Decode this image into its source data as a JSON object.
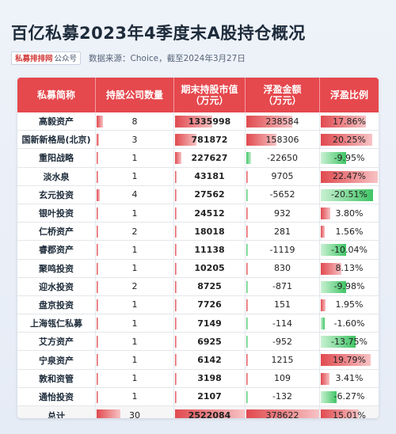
{
  "title": "百亿私募2023年4季度末A股持仓概况",
  "badge": {
    "part1": "私募排排网",
    "part2": "公众号"
  },
  "source": "数据来源：Choice，截至2024年3月27日",
  "headers": [
    "私募简称",
    "持股公司数量",
    "期末持股市值\n（万元）",
    "浮盈金额\n（万元）",
    "浮盈比例"
  ],
  "colors": {
    "header": "#e5484d",
    "positive": "#e04a4f",
    "negative": "#3fc565"
  },
  "rows": [
    {
      "name": "高毅资产",
      "count": "8",
      "value": "1335998",
      "profit": "238584",
      "ratio": "17.86%"
    },
    {
      "name": "国新新格局(北京)",
      "count": "3",
      "value": "781872",
      "profit": "158306",
      "ratio": "20.25%"
    },
    {
      "name": "重阳战略",
      "count": "1",
      "value": "227627",
      "profit": "-22650",
      "ratio": "-9.95%"
    },
    {
      "name": "淡水泉",
      "count": "1",
      "value": "43181",
      "profit": "9705",
      "ratio": "22.47%"
    },
    {
      "name": "玄元投资",
      "count": "4",
      "value": "27562",
      "profit": "-5652",
      "ratio": "-20.51%"
    },
    {
      "name": "银叶投资",
      "count": "1",
      "value": "24512",
      "profit": "932",
      "ratio": "3.80%"
    },
    {
      "name": "仁桥资产",
      "count": "2",
      "value": "18018",
      "profit": "281",
      "ratio": "1.56%"
    },
    {
      "name": "睿郡资产",
      "count": "1",
      "value": "11138",
      "profit": "-1119",
      "ratio": "-10.04%"
    },
    {
      "name": "聚鸣投资",
      "count": "1",
      "value": "10205",
      "profit": "830",
      "ratio": "8.13%"
    },
    {
      "name": "迎水投资",
      "count": "2",
      "value": "8725",
      "profit": "-871",
      "ratio": "-9.98%"
    },
    {
      "name": "盘京投资",
      "count": "1",
      "value": "7726",
      "profit": "151",
      "ratio": "1.95%"
    },
    {
      "name": "上海瓴仁私募",
      "count": "1",
      "value": "7149",
      "profit": "-114",
      "ratio": "-1.60%"
    },
    {
      "name": "艾方资产",
      "count": "1",
      "value": "6925",
      "profit": "-952",
      "ratio": "-13.75%"
    },
    {
      "name": "宁泉资产",
      "count": "1",
      "value": "6142",
      "profit": "1215",
      "ratio": "19.79%"
    },
    {
      "name": "敦和资管",
      "count": "1",
      "value": "3198",
      "profit": "109",
      "ratio": "3.41%"
    },
    {
      "name": "通怡投资",
      "count": "1",
      "value": "2107",
      "profit": "-132",
      "ratio": "-6.27%"
    }
  ],
  "total": {
    "name": "总计",
    "count": "30",
    "value": "2522084",
    "profit": "378622",
    "ratio": "15.01%"
  }
}
